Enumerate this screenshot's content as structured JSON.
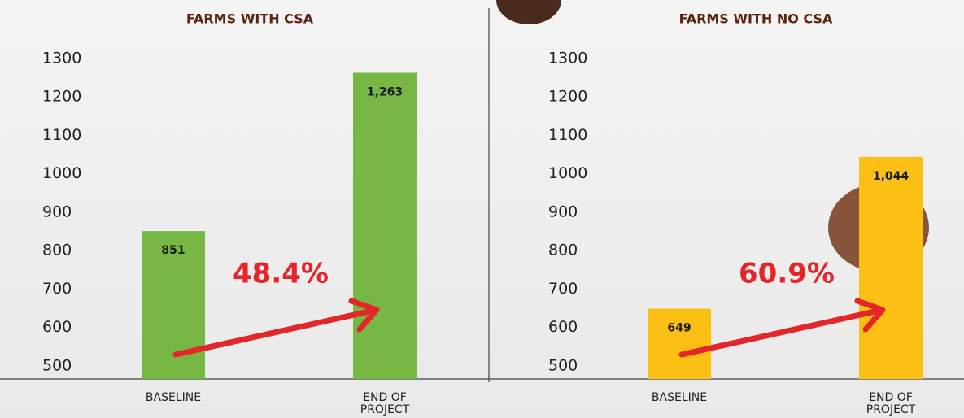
{
  "chart_data": [
    {
      "type": "bar",
      "title": "FARMS WITH CSA",
      "categories": [
        "BASELINE",
        "END OF PROJECT"
      ],
      "values": [
        851,
        1263
      ],
      "value_labels": [
        "851",
        "1,263"
      ],
      "color": "#76b843",
      "ylim": [
        466,
        1300
      ],
      "yticks": [
        500,
        600,
        700,
        800,
        900,
        1000,
        1100,
        1200,
        1300
      ],
      "annotation": "48.4%"
    },
    {
      "type": "bar",
      "title": "FARMS WITH NO CSA",
      "categories": [
        "BASELINE",
        "END OF PROJECT"
      ],
      "values": [
        649,
        1044
      ],
      "value_labels": [
        "649",
        "1,044"
      ],
      "color": "#fcc014",
      "ylim": [
        466,
        1300
      ],
      "yticks": [
        500,
        600,
        700,
        800,
        900,
        1000,
        1100,
        1200,
        1300
      ],
      "annotation": "60.9%"
    }
  ]
}
